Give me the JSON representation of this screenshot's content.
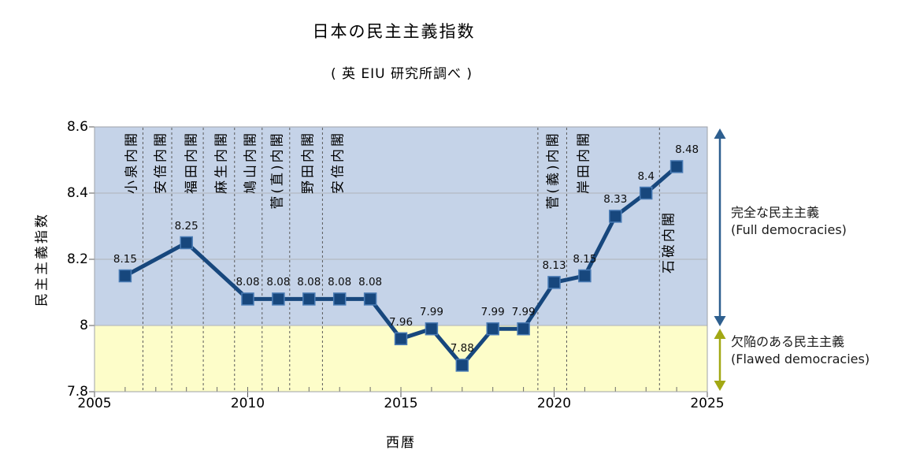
{
  "chart_data": {
    "type": "line",
    "title": "日本の民主主義指数",
    "subtitle": "( 英 EIU 研究所調べ )",
    "xlabel": "西暦",
    "ylabel": "民主主義指数",
    "xlim": [
      2005,
      2025
    ],
    "ylim": [
      7.8,
      8.6
    ],
    "grid": true,
    "x_ticks": [
      {
        "label": "2005",
        "value": 2005
      },
      {
        "label": "2010",
        "value": 2010
      },
      {
        "label": "2015",
        "value": 2015
      },
      {
        "label": "2020",
        "value": 2020
      },
      {
        "label": "2025",
        "value": 2025
      }
    ],
    "y_ticks": [
      {
        "label": "7.8",
        "value": 7.8
      },
      {
        "label": "8",
        "value": 8
      },
      {
        "label": "8.2",
        "value": 8.2
      },
      {
        "label": "8.4",
        "value": 8.4
      },
      {
        "label": "8.6",
        "value": 8.6
      }
    ],
    "series": [
      {
        "name": "民主主義指数",
        "color": "#17477d",
        "marker_highlight": "#4a7cb5",
        "x": [
          2006,
          2008,
          2010,
          2011,
          2012,
          2013,
          2014,
          2015,
          2016,
          2017,
          2018,
          2019,
          2020,
          2021,
          2022,
          2023,
          2024
        ],
        "values": [
          8.15,
          8.25,
          8.08,
          8.08,
          8.08,
          8.08,
          8.08,
          7.96,
          7.99,
          7.88,
          7.99,
          7.99,
          8.13,
          8.15,
          8.33,
          8.4,
          8.48
        ],
        "labels": [
          "8.15",
          "8.25",
          "8.08",
          "8.08",
          "8.08",
          "8.08",
          "8.08",
          "7.96",
          "7.99",
          "7.88",
          "7.99",
          "7.99",
          "8.13",
          "8.15",
          "8.33",
          "8.4",
          "8.48"
        ]
      }
    ],
    "bands": [
      {
        "name": "full-democracies",
        "from": 8.0,
        "to": 8.6,
        "color": "#c5d3e8"
      },
      {
        "name": "flawed-democracies",
        "from": 7.8,
        "to": 8.0,
        "color": "#fdfdc9"
      }
    ],
    "cabinet_boundaries": [
      2006.58,
      2007.52,
      2008.55,
      2009.57,
      2010.47,
      2011.37,
      2012.44,
      2019.47,
      2020.41,
      2023.44
    ],
    "cabinet_labels": [
      {
        "label": "小泉内閣",
        "year": 2006.15
      },
      {
        "label": "安倍内閣",
        "year": 2007.12
      },
      {
        "label": "福田内閣",
        "year": 2008.1
      },
      {
        "label": "麻生内閣",
        "year": 2009.08
      },
      {
        "label": "鳩山内閣",
        "year": 2010.05
      },
      {
        "label": "菅(直)内閣",
        "year": 2010.92
      },
      {
        "label": "野田内閣",
        "year": 2011.92
      },
      {
        "label": "安倍内閣",
        "year": 2012.9
      },
      {
        "label": "菅(義)内閣",
        "year": 2019.92
      },
      {
        "label": "岸田内閣",
        "year": 2020.9
      },
      {
        "label": "石破内閣",
        "year": 2023.7,
        "top_offset": 106
      }
    ],
    "annotations": [
      {
        "name": "full-democracies",
        "line1": "完全な民主主義",
        "line2": "(Full democracies)",
        "arrow_color": "#2e5f8f",
        "from": 8.6,
        "to": 8.0
      },
      {
        "name": "flawed-democracies",
        "line1": "欠陥のある民主主義",
        "line2": "(Flawed democracies)",
        "arrow_color": "#a2a814",
        "from": 8.0,
        "to": 7.8
      }
    ]
  }
}
